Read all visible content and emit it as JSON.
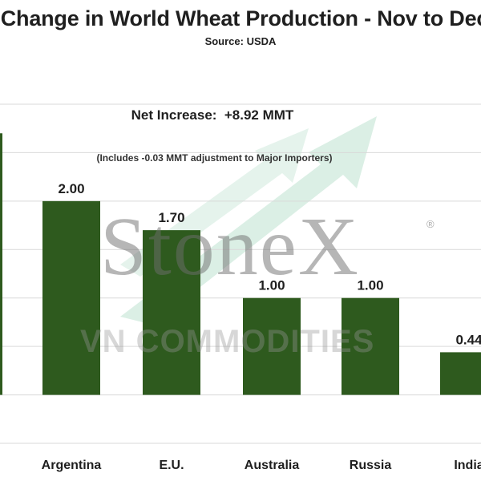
{
  "header": {
    "title": "Change in World Wheat Production - Nov to Dec",
    "source": "Source: USDA"
  },
  "annotations": {
    "net_increase": "Net Increase:  +8.92 MMT",
    "note": "(Includes -0.03 MMT adjustment to Major Importers)"
  },
  "watermark": {
    "brand": "StoneX",
    "registered": "®",
    "sub": "VN COMMODITIES"
  },
  "colors": {
    "bar": "#2e5a1e",
    "gridline": "#d9d9d9",
    "arrow": "#cfe9dc"
  },
  "chart_data": {
    "type": "bar",
    "title": "Change in World Wheat Production - Nov to Dec",
    "subtitle": "Source: USDA",
    "categories": [
      "Argentina",
      "E.U.",
      "Australia",
      "Russia",
      "India"
    ],
    "values": [
      2.0,
      1.7,
      1.0,
      1.0,
      0.44
    ],
    "data_labels": [
      "2.00",
      "1.70",
      "1.00",
      "1.00",
      "0.44"
    ],
    "ylim": [
      -0.5,
      3.0
    ],
    "grid": true,
    "legend": "none"
  }
}
